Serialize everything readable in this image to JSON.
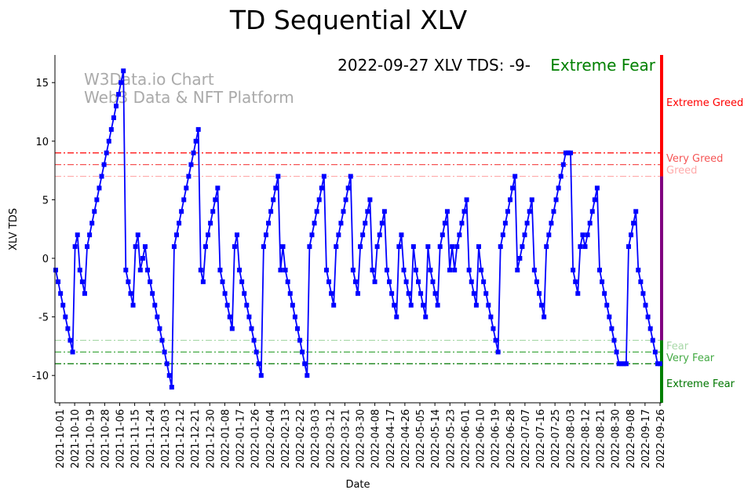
{
  "chart_data": {
    "type": "line",
    "title": "TD Sequential XLV",
    "annotation": "2022-09-27 XLV TDS: -9-",
    "sentiment": "Extreme Fear",
    "watermark": [
      "W3Data.io Chart",
      "Web3 Data & NFT Platform"
    ],
    "xlabel": "Date",
    "ylabel": "XLV TDS",
    "ylim": [
      -12.3,
      17.4
    ],
    "yticks": [
      -10,
      -5,
      0,
      5,
      10,
      15
    ],
    "xticks": [
      "2021-10-01",
      "2021-10-10",
      "2021-10-19",
      "2021-10-28",
      "2021-11-06",
      "2021-11-15",
      "2021-11-24",
      "2021-12-03",
      "2021-12-12",
      "2021-12-21",
      "2021-12-30",
      "2022-01-08",
      "2022-01-17",
      "2022-01-26",
      "2022-02-04",
      "2022-02-13",
      "2022-02-22",
      "2022-03-03",
      "2022-03-12",
      "2022-03-21",
      "2022-03-30",
      "2022-04-08",
      "2022-04-17",
      "2022-04-26",
      "2022-05-05",
      "2022-05-14",
      "2022-05-23",
      "2022-06-01",
      "2022-06-10",
      "2022-06-19",
      "2022-06-28",
      "2022-07-07",
      "2022-07-16",
      "2022-07-25",
      "2022-08-03",
      "2022-08-12",
      "2022-08-21",
      "2022-08-30",
      "2022-09-08",
      "2022-09-17",
      "2022-09-26"
    ],
    "levels": [
      {
        "label": "Extreme Greed",
        "value": 9,
        "color": "#ff0000"
      },
      {
        "label": "Very Greed",
        "value": 8,
        "color": "#f55555"
      },
      {
        "label": "Greed",
        "value": 7,
        "color": "#ffaaaa"
      },
      {
        "label": "Fear",
        "value": -7,
        "color": "#a8d8a8"
      },
      {
        "label": "Very Fear",
        "value": -8,
        "color": "#44aa44"
      },
      {
        "label": "Extreme Fear",
        "value": -9,
        "color": "#007700"
      }
    ],
    "zone_colors": {
      "greed": "#ff0000",
      "neutral": "#800080",
      "fear": "#008000"
    },
    "series_color": "#0000ff",
    "values": [
      -1,
      -2,
      -3,
      -4,
      -5,
      -6,
      -7,
      -8,
      1,
      2,
      -1,
      -2,
      -3,
      1,
      2,
      3,
      4,
      5,
      6,
      7,
      8,
      9,
      10,
      11,
      12,
      13,
      14,
      15,
      16,
      -1,
      -2,
      -3,
      -4,
      1,
      2,
      -1,
      0,
      1,
      -1,
      -2,
      -3,
      -4,
      -5,
      -6,
      -7,
      -8,
      -9,
      -10,
      -11,
      1,
      2,
      3,
      4,
      5,
      6,
      7,
      8,
      9,
      10,
      11,
      -1,
      -2,
      1,
      2,
      3,
      4,
      5,
      6,
      -1,
      -2,
      -3,
      -4,
      -5,
      -6,
      1,
      2,
      -1,
      -2,
      -3,
      -4,
      -5,
      -6,
      -7,
      -8,
      -9,
      -10,
      1,
      2,
      3,
      4,
      5,
      6,
      7,
      -1,
      1,
      -1,
      -2,
      -3,
      -4,
      -5,
      -6,
      -7,
      -8,
      -9,
      -10,
      1,
      2,
      3,
      4,
      5,
      6,
      7,
      -1,
      -2,
      -3,
      -4,
      1,
      2,
      3,
      4,
      5,
      6,
      7,
      -1,
      -2,
      -3,
      1,
      2,
      3,
      4,
      5,
      -1,
      -2,
      1,
      2,
      3,
      4,
      -1,
      -2,
      -3,
      -4,
      -5,
      1,
      2,
      -1,
      -2,
      -3,
      -4,
      1,
      -1,
      -2,
      -3,
      -4,
      -5,
      1,
      -1,
      -2,
      -3,
      -4,
      1,
      2,
      3,
      4,
      -1,
      1,
      -1,
      1,
      2,
      3,
      4,
      5,
      -1,
      -2,
      -3,
      -4,
      1,
      -1,
      -2,
      -3,
      -4,
      -5,
      -6,
      -7,
      -8,
      1,
      2,
      3,
      4,
      5,
      6,
      7,
      -1,
      0,
      1,
      2,
      3,
      4,
      5,
      -1,
      -2,
      -3,
      -4,
      -5,
      1,
      2,
      3,
      4,
      5,
      6,
      7,
      8,
      9,
      9,
      9,
      -1,
      -2,
      -3,
      1,
      2,
      1,
      2,
      3,
      4,
      5,
      6,
      -1,
      -2,
      -3,
      -4,
      -5,
      -6,
      -7,
      -8,
      -9,
      -9,
      -9,
      -9,
      1,
      2,
      3,
      4,
      -1,
      -2,
      -3,
      -4,
      -5,
      -6,
      -7,
      -8,
      -9,
      -9
    ]
  }
}
